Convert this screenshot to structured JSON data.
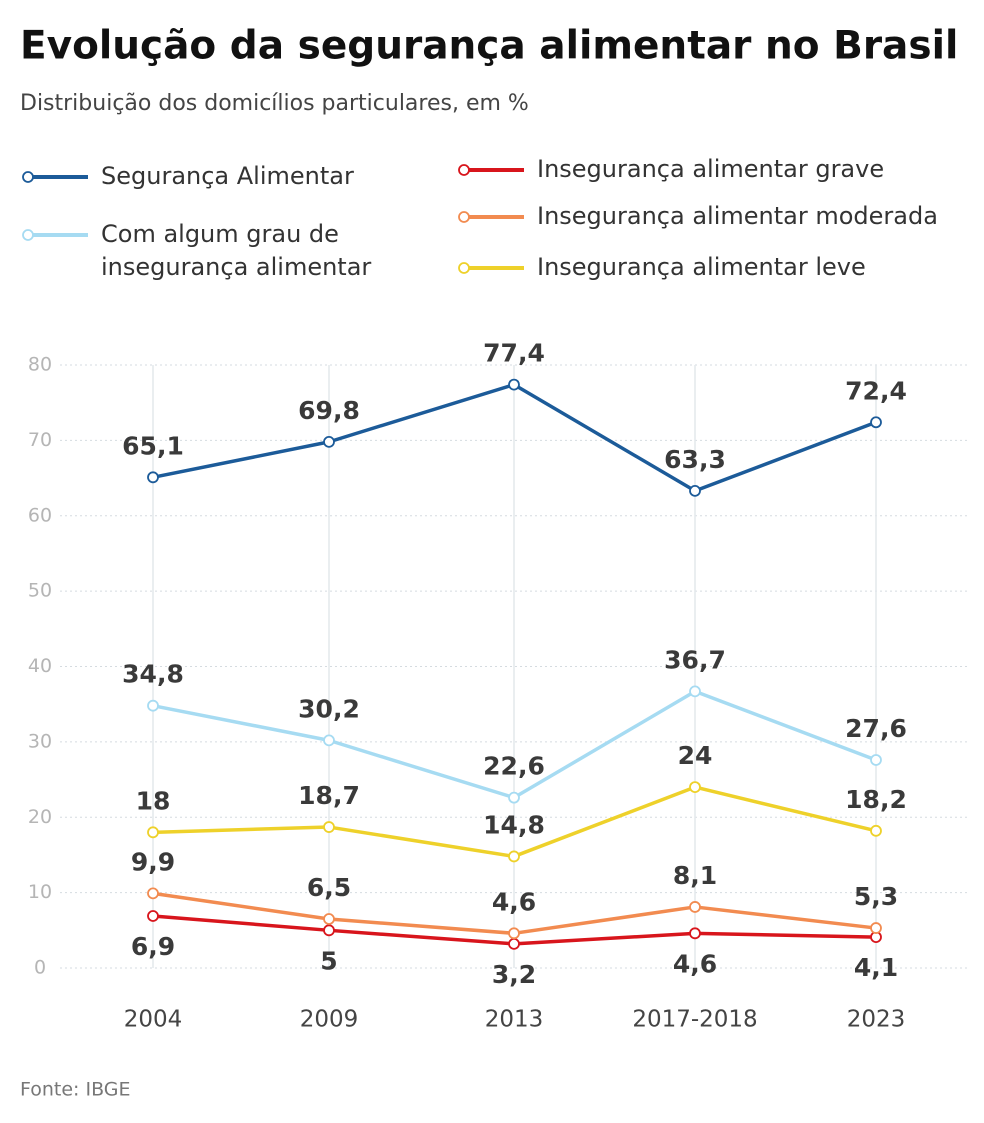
{
  "chart_data": {
    "type": "line",
    "title": "Evolução da segurança alimentar no Brasil",
    "subtitle": "Distribuição dos domicílios particulares, em %",
    "source": "Fonte: IBGE",
    "categories": [
      "2004",
      "2009",
      "2013",
      "2017-2018",
      "2023"
    ],
    "ylim": [
      0,
      80
    ],
    "yticks": [
      0,
      10,
      20,
      30,
      40,
      50,
      60,
      70,
      80
    ],
    "grid": true,
    "series": [
      {
        "name": "Segurança Alimentar",
        "color": "#1c5b99",
        "values": [
          65.1,
          69.8,
          77.4,
          63.3,
          72.4
        ],
        "value_labels": [
          "65,1",
          "69,8",
          "77,4",
          "63,3",
          "72,4"
        ]
      },
      {
        "name": "Com algum grau de insegurança alimentar",
        "color": "#a6dbf2",
        "values": [
          34.8,
          30.2,
          22.6,
          36.7,
          27.6
        ],
        "value_labels": [
          "34,8",
          "30,2",
          "22,6",
          "36,7",
          "27,6"
        ]
      },
      {
        "name": "Insegurança alimentar grave",
        "color": "#d8151c",
        "values": [
          6.9,
          5,
          3.2,
          4.6,
          4.1
        ],
        "value_labels": [
          "6,9",
          "5",
          "3,2",
          "4,6",
          "4,1"
        ]
      },
      {
        "name": "Insegurança alimentar moderada",
        "color": "#f28b50",
        "values": [
          9.9,
          6.5,
          4.6,
          8.1,
          5.3
        ],
        "value_labels": [
          "9,9",
          "6,5",
          "4,6",
          "8,1",
          "5,3"
        ]
      },
      {
        "name": "Insegurança alimentar leve",
        "color": "#eed12a",
        "values": [
          18,
          18.7,
          14.8,
          24,
          18.2
        ],
        "value_labels": [
          "18",
          "18,7",
          "14,8",
          "24",
          "18,2"
        ]
      }
    ]
  }
}
